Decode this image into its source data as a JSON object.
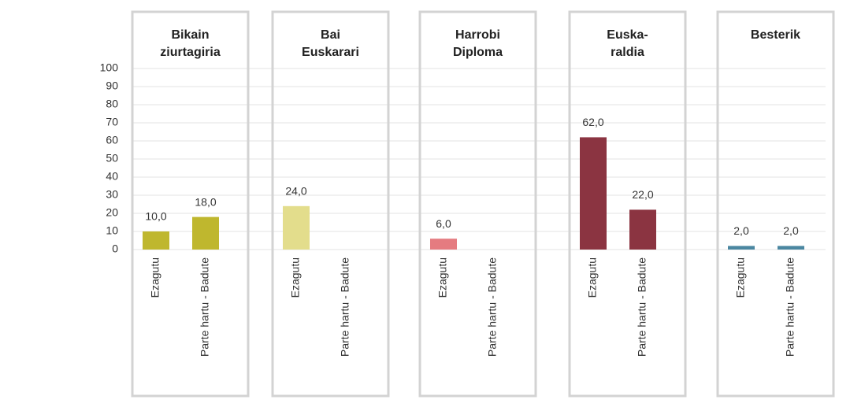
{
  "chart_data": {
    "type": "bar",
    "ylim": [
      0,
      100
    ],
    "yticks": [
      0,
      10,
      20,
      30,
      40,
      50,
      60,
      70,
      80,
      90,
      100
    ],
    "grid": true,
    "groups": [
      {
        "title_lines": [
          "Bikain",
          "ziurtagiria"
        ],
        "color": "#bfb72e",
        "categories": [
          "Ezagutu",
          "Parte hartu - Badute"
        ],
        "values": [
          10,
          18
        ],
        "value_labels": [
          "10,0",
          "18,0"
        ]
      },
      {
        "title_lines": [
          "Bai",
          "Euskarari"
        ],
        "color": "#e3dd8c",
        "categories": [
          "Ezagutu",
          "Parte hartu - Badute"
        ],
        "values": [
          24,
          null
        ],
        "value_labels": [
          "24,0",
          null
        ]
      },
      {
        "title_lines": [
          "Harrobi",
          "Diploma"
        ],
        "color": "#e57b80",
        "categories": [
          "Ezagutu",
          "Parte hartu - Badute"
        ],
        "values": [
          6,
          null
        ],
        "value_labels": [
          "6,0",
          null
        ]
      },
      {
        "title_lines": [
          "Euska-",
          "raldia"
        ],
        "color": "#8b3441",
        "categories": [
          "Ezagutu",
          "Parte hartu - Badute"
        ],
        "values": [
          62,
          22
        ],
        "value_labels": [
          "62,0",
          "22,0"
        ]
      },
      {
        "title_lines": [
          "Besterik"
        ],
        "color": "#4b87a1",
        "categories": [
          "Ezagutu",
          "Parte hartu - Badute"
        ],
        "values": [
          2,
          2
        ],
        "value_labels": [
          "2,0",
          "2,0"
        ]
      }
    ]
  }
}
